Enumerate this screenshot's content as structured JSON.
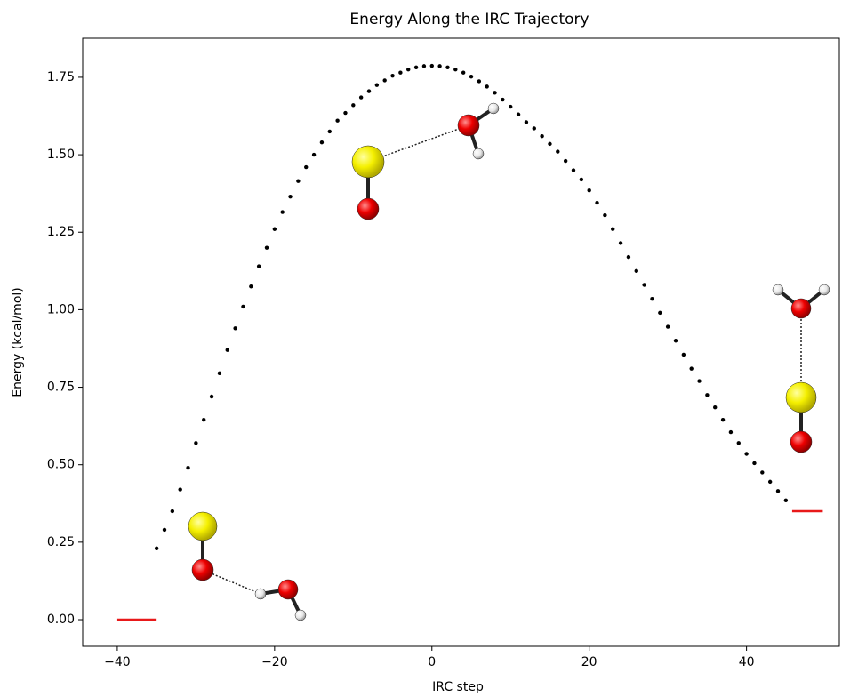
{
  "chart_data": {
    "type": "scatter",
    "title": "Energy Along the IRC Trajectory",
    "xlabel": "IRC step",
    "ylabel": "Energy (kcal/mol)",
    "x": [
      -35,
      -34,
      -33,
      -32,
      -31,
      -30,
      -29,
      -28,
      -27,
      -26,
      -25,
      -24,
      -23,
      -22,
      -21,
      -20,
      -19,
      -18,
      -17,
      -16,
      -15,
      -14,
      -13,
      -12,
      -11,
      -10,
      -9,
      -8,
      -7,
      -6,
      -5,
      -4,
      -3,
      -2,
      -1,
      0,
      1,
      2,
      3,
      4,
      5,
      6,
      7,
      8,
      9,
      10,
      11,
      12,
      13,
      14,
      15,
      16,
      17,
      18,
      19,
      20,
      21,
      22,
      23,
      24,
      25,
      26,
      27,
      28,
      29,
      30,
      31,
      32,
      33,
      34,
      35,
      36,
      37,
      38,
      39,
      40,
      41,
      42,
      43,
      44,
      45
    ],
    "series": [
      {
        "color": "#000000",
        "values": [
          0.23,
          0.29,
          0.35,
          0.42,
          0.49,
          0.57,
          0.645,
          0.72,
          0.795,
          0.87,
          0.94,
          1.01,
          1.075,
          1.14,
          1.2,
          1.26,
          1.315,
          1.365,
          1.415,
          1.46,
          1.5,
          1.54,
          1.575,
          1.61,
          1.635,
          1.66,
          1.685,
          1.705,
          1.725,
          1.74,
          1.755,
          1.765,
          1.775,
          1.782,
          1.786,
          1.787,
          1.786,
          1.782,
          1.775,
          1.765,
          1.752,
          1.737,
          1.72,
          1.7,
          1.678,
          1.655,
          1.63,
          1.605,
          1.585,
          1.56,
          1.535,
          1.51,
          1.48,
          1.45,
          1.42,
          1.385,
          1.345,
          1.305,
          1.26,
          1.215,
          1.17,
          1.125,
          1.08,
          1.035,
          0.99,
          0.945,
          0.9,
          0.855,
          0.81,
          0.77,
          0.725,
          0.685,
          0.645,
          0.605,
          0.57,
          0.535,
          0.505,
          0.475,
          0.445,
          0.415,
          0.385
        ]
      }
    ],
    "levels": [
      {
        "x": [
          -40,
          -35
        ],
        "y": 0,
        "color": "#e8191a"
      },
      {
        "x": [
          45.8,
          49.7
        ],
        "y": 0.35,
        "color": "#e8191a"
      }
    ],
    "xlim": [
      -44.4,
      51.8
    ],
    "ylim": [
      -0.086,
      1.876
    ],
    "xticks": [
      {
        "value": -40,
        "label": "−40"
      },
      {
        "value": -20,
        "label": "−20"
      },
      0,
      20,
      40
    ],
    "yticks": [
      {
        "value": 0,
        "label": "0.00"
      },
      {
        "value": 0.25,
        "label": "0.25"
      },
      {
        "value": 0.5,
        "label": "0.50"
      },
      {
        "value": 0.75,
        "label": "0.75"
      },
      {
        "value": 1,
        "label": "1.00"
      },
      {
        "value": 1.25,
        "label": "1.25"
      },
      {
        "value": 1.5,
        "label": "1.50"
      },
      {
        "value": 1.75,
        "label": "1.75"
      }
    ]
  }
}
